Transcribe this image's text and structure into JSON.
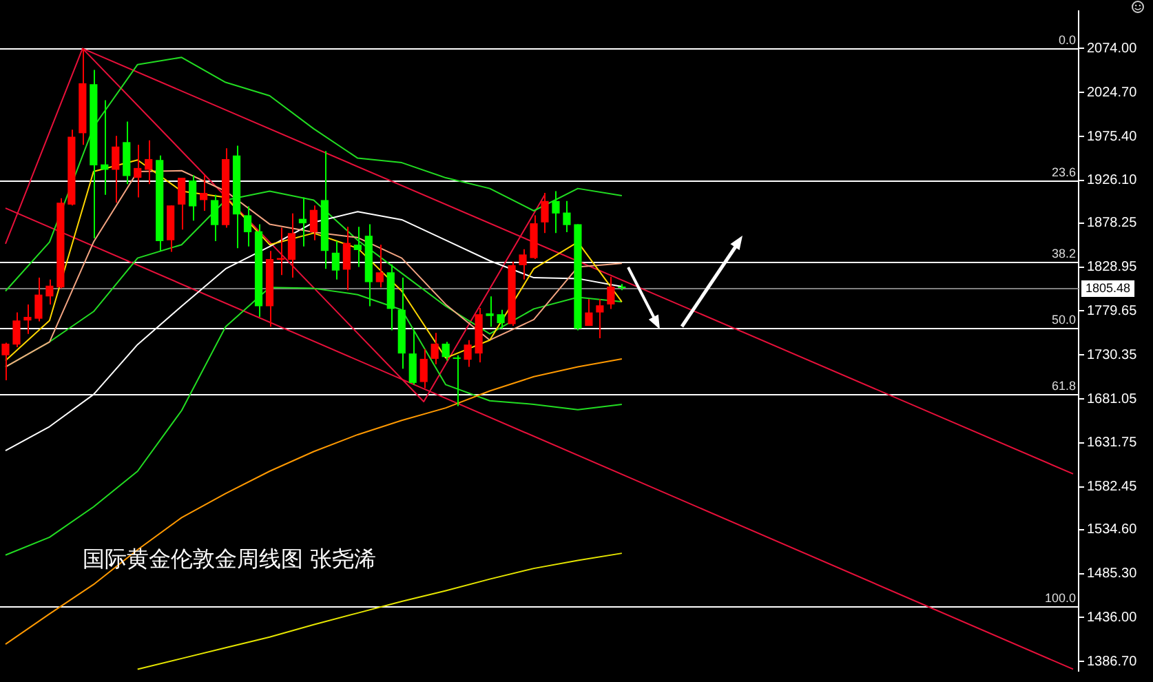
{
  "chart_data": {
    "type": "candlestick",
    "title": "国际黄金伦敦金周线图 张尧浠",
    "categories": [
      null,
      null,
      null,
      null,
      null,
      null,
      null,
      null,
      null,
      null,
      null,
      null,
      null,
      null,
      null,
      null,
      null,
      null,
      null,
      null,
      null,
      null,
      null,
      null,
      null,
      null,
      null,
      null,
      null,
      null,
      null,
      null,
      null,
      null,
      null,
      null,
      null,
      null,
      null,
      null,
      null,
      null,
      null,
      null,
      null,
      null,
      null,
      null,
      null,
      null,
      null,
      null,
      null,
      null,
      null,
      null,
      null,
      null,
      null,
      null,
      null,
      null,
      null,
      null,
      null,
      null,
      null,
      null,
      null,
      null,
      null,
      null,
      null,
      null,
      null,
      null,
      null,
      null,
      null,
      null,
      null,
      null,
      null,
      null,
      null,
      null,
      null,
      null,
      null,
      null,
      null,
      null,
      null,
      null,
      null,
      null,
      null,
      null
    ],
    "ohlc": [
      [
        1730,
        1744,
        1702,
        1743
      ],
      [
        1742,
        1778,
        1739,
        1769
      ],
      [
        1769,
        1787,
        1754,
        1773
      ],
      [
        1771,
        1817,
        1768,
        1798
      ],
      [
        1796,
        1815,
        1787,
        1808
      ],
      [
        1806,
        1906,
        1805,
        1901
      ],
      [
        1899,
        1983,
        1898,
        1975
      ],
      [
        1979,
        2074,
        1966,
        2035
      ],
      [
        2034,
        2050,
        1861,
        1943
      ],
      [
        1944,
        2016,
        1910,
        1938
      ],
      [
        1938,
        1976,
        1901,
        1964
      ],
      [
        1969,
        1992,
        1922,
        1931
      ],
      [
        1929,
        1966,
        1907,
        1940
      ],
      [
        1938,
        1971,
        1922,
        1950
      ],
      [
        1949,
        1954,
        1847,
        1858
      ],
      [
        1859,
        1898,
        1846,
        1898
      ],
      [
        1899,
        1929,
        1871,
        1929
      ],
      [
        1926,
        1932,
        1881,
        1897
      ],
      [
        1904,
        1932,
        1892,
        1912
      ],
      [
        1904,
        1910,
        1858,
        1876
      ],
      [
        1876,
        1962,
        1873,
        1950
      ],
      [
        1954,
        1965,
        1850,
        1888
      ],
      [
        1887,
        1897,
        1852,
        1868
      ],
      [
        1869,
        1877,
        1773,
        1785
      ],
      [
        1785,
        1847,
        1762,
        1838
      ],
      [
        1837,
        1873,
        1820,
        1839
      ],
      [
        1837,
        1889,
        1817,
        1867
      ],
      [
        1883,
        1907,
        1852,
        1878
      ],
      [
        1868,
        1898,
        1859,
        1893
      ],
      [
        1904,
        1959,
        1827,
        1847
      ],
      [
        1845,
        1858,
        1815,
        1825
      ],
      [
        1826,
        1874,
        1803,
        1856
      ],
      [
        1854,
        1874,
        1829,
        1848
      ],
      [
        1864,
        1877,
        1785,
        1812
      ],
      [
        1812,
        1854,
        1806,
        1823
      ],
      [
        1823,
        1832,
        1758,
        1782
      ],
      [
        1781,
        1817,
        1715,
        1732
      ],
      [
        1732,
        1758,
        1697,
        1699
      ],
      [
        1700,
        1737,
        1693,
        1726
      ],
      [
        1726,
        1755,
        1720,
        1743
      ],
      [
        1743,
        1745,
        1724,
        1728
      ],
      [
        1727,
        1730,
        1673,
        1726
      ],
      [
        1725,
        1747,
        1717,
        1742
      ],
      [
        1732,
        1783,
        1722,
        1776
      ],
      [
        1777,
        1796,
        1762,
        1774
      ],
      [
        1776,
        1781,
        1760,
        1766
      ],
      [
        1765,
        1835,
        1763,
        1831
      ],
      [
        1831,
        1849,
        1815,
        1843
      ],
      [
        1839,
        1887,
        1838,
        1878
      ],
      [
        1879,
        1912,
        1867,
        1903
      ],
      [
        1903,
        1914,
        1867,
        1889
      ],
      [
        1890,
        1903,
        1868,
        1876
      ],
      [
        1877,
        1877,
        1758,
        1760
      ],
      [
        1763,
        1793,
        1763,
        1778
      ],
      [
        1778,
        1793,
        1749,
        1786
      ],
      [
        1787,
        1818,
        1782,
        1807
      ],
      [
        1807,
        1810,
        1803,
        1805.48
      ],
      null,
      null,
      null,
      null,
      null,
      null,
      null,
      null,
      null,
      null,
      null,
      null,
      null,
      null,
      null,
      null,
      null,
      null,
      null,
      null,
      null,
      null,
      null,
      null,
      null,
      null,
      null,
      null,
      null,
      null,
      null,
      null,
      null,
      null,
      null,
      null,
      null,
      null,
      null,
      null,
      null
    ],
    "colors": [
      "#ff0000",
      "#ff0000",
      "#ff0000",
      "#ff0000",
      "#ff0000",
      "#ff0000",
      "#ff0000",
      "#ff0000",
      "#00ff00",
      "#00ff00",
      "#ff0000",
      "#00ff00",
      "#ff0000",
      "#ff0000",
      "#00ff00",
      "#ff0000",
      "#ff0000",
      "#00ff00",
      "#ff0000",
      "#00ff00",
      "#ff0000",
      "#00ff00",
      "#00ff00",
      "#00ff00",
      "#ff0000",
      "#ff0000",
      "#ff0000",
      "#00ff00",
      "#ff0000",
      "#00ff00",
      "#00ff00",
      "#ff0000",
      "#00ff00",
      "#00ff00",
      "#ff0000",
      "#00ff00",
      "#00ff00",
      "#00ff00",
      "#ff0000",
      "#ff0000",
      "#00ff00",
      "#00ff00",
      "#ff0000",
      "#ff0000",
      "#00ff00",
      "#00ff00",
      "#ff0000",
      "#ff0000",
      "#ff0000",
      "#ff0000",
      "#00ff00",
      "#00ff00",
      "#00ff00",
      "#ff0000",
      "#ff0000",
      "#ff0000",
      "#00ff00",
      null,
      null,
      null,
      null,
      null,
      null,
      null,
      null,
      null,
      null,
      null,
      null,
      null,
      null,
      null,
      null,
      null,
      null,
      null,
      null,
      null,
      null,
      null,
      null,
      null,
      null,
      null,
      null,
      null,
      null,
      null,
      null,
      null,
      null,
      null,
      null,
      null,
      null,
      null,
      null,
      null
    ],
    "series": [
      {
        "type": "line",
        "color": "#ffd700",
        "values": [
          1724,
          null,
          null,
          null,
          1769,
          null,
          null,
          null,
          1936,
          null,
          null,
          null,
          1949,
          null,
          null,
          null,
          1914,
          null,
          null,
          null,
          1907,
          null,
          null,
          null,
          1854,
          null,
          null,
          null,
          1867,
          null,
          null,
          null,
          1850,
          null,
          null,
          null,
          1802,
          null,
          null,
          null,
          1727,
          null,
          null,
          null,
          1747,
          null,
          null,
          null,
          1827,
          null,
          null,
          null,
          1857,
          null,
          null,
          null,
          1790,
          null,
          null,
          null,
          null,
          null,
          null,
          null,
          null,
          null,
          null,
          null,
          null,
          null,
          null,
          null,
          null,
          null,
          null,
          null,
          null,
          null,
          null,
          null,
          null,
          null,
          null,
          null,
          null,
          null,
          null,
          null,
          null,
          null,
          null,
          null,
          null,
          null,
          null,
          null,
          null,
          null
        ]
      },
      {
        "type": "line",
        "color": "#f4a582",
        "values": [
          1717,
          null,
          null,
          null,
          1745,
          null,
          null,
          null,
          1857,
          null,
          null,
          null,
          1936,
          null,
          null,
          null,
          1937,
          null,
          null,
          null,
          1914,
          null,
          null,
          null,
          1877,
          null,
          null,
          null,
          1868,
          null,
          null,
          null,
          1862,
          null,
          null,
          null,
          1839,
          null,
          null,
          null,
          1787,
          null,
          null,
          null,
          1747,
          null,
          null,
          null,
          1770,
          null,
          null,
          null,
          1829,
          null,
          null,
          null,
          1833,
          null,
          null,
          null,
          null,
          null,
          null,
          null,
          null,
          null,
          null,
          null,
          null,
          null,
          null,
          null,
          null,
          null,
          null,
          null,
          null,
          null,
          null,
          null,
          null,
          null,
          null,
          null,
          null,
          null,
          null,
          null,
          null,
          null,
          null,
          null,
          null,
          null,
          null,
          null,
          null,
          null
        ]
      },
      {
        "type": "line",
        "color": "#ffffff",
        "values": [
          1623,
          null,
          null,
          null,
          1650,
          null,
          null,
          null,
          1686,
          null,
          null,
          null,
          1742,
          null,
          null,
          null,
          1785,
          null,
          null,
          null,
          1827,
          null,
          null,
          null,
          1852,
          null,
          null,
          null,
          1879,
          null,
          null,
          null,
          1891,
          null,
          null,
          null,
          1882,
          null,
          null,
          null,
          1859,
          null,
          null,
          null,
          1836,
          null,
          null,
          null,
          1817,
          null,
          null,
          null,
          1816,
          null,
          null,
          null,
          1807,
          null,
          null,
          null,
          null,
          null,
          null,
          null,
          null,
          null,
          null,
          null,
          null,
          null,
          null,
          null,
          null,
          null,
          null,
          null,
          null,
          null,
          null,
          null,
          null,
          null,
          null,
          null,
          null,
          null,
          null,
          null,
          null,
          null,
          null,
          null,
          null,
          null,
          null,
          null,
          null,
          null
        ]
      },
      {
        "type": "line",
        "color": "#ff9900",
        "values": [
          1406,
          null,
          null,
          null,
          1440,
          null,
          null,
          null,
          1473,
          null,
          null,
          null,
          1512,
          null,
          null,
          null,
          1548,
          null,
          null,
          null,
          1575,
          null,
          null,
          null,
          1600,
          null,
          null,
          null,
          1622,
          null,
          null,
          null,
          1641,
          null,
          null,
          null,
          1657,
          null,
          null,
          null,
          1671,
          null,
          null,
          null,
          1690,
          null,
          null,
          null,
          1706,
          null,
          null,
          null,
          1717,
          null,
          null,
          null,
          1726,
          null,
          null,
          null,
          null,
          null,
          null,
          null,
          null,
          null,
          null,
          null,
          null,
          null,
          null,
          null,
          null,
          null,
          null,
          null,
          null,
          null,
          null,
          null,
          null,
          null,
          null,
          null,
          null,
          null,
          null,
          null,
          null,
          null,
          null,
          null,
          null,
          null,
          null,
          null,
          null,
          null
        ]
      },
      {
        "type": "line",
        "color": "#e6e600",
        "values": [
          null,
          null,
          null,
          null,
          null,
          null,
          null,
          null,
          null,
          null,
          null,
          null,
          1378,
          null,
          null,
          null,
          1390,
          null,
          null,
          null,
          1402,
          null,
          null,
          null,
          1414,
          null,
          null,
          null,
          1428,
          null,
          null,
          null,
          1441,
          null,
          null,
          null,
          1454,
          null,
          null,
          null,
          1466,
          null,
          null,
          null,
          1479,
          null,
          null,
          null,
          1491,
          null,
          null,
          null,
          1500,
          null,
          null,
          null,
          1508,
          null,
          null,
          null,
          null,
          null,
          null,
          null,
          null,
          null,
          null,
          null,
          null,
          null,
          null,
          null,
          null,
          null,
          null,
          null,
          null,
          null,
          null,
          null,
          null,
          null,
          null,
          null,
          null,
          null,
          null,
          null,
          null,
          null,
          null,
          null,
          null,
          null,
          null,
          null,
          null,
          null
        ]
      },
      {
        "type": "line",
        "color": "#22dd22",
        "values": [
          1802,
          null,
          null,
          null,
          1857,
          null,
          null,
          null,
          1986,
          null,
          null,
          null,
          2056,
          null,
          null,
          null,
          2064,
          null,
          null,
          null,
          2036,
          null,
          null,
          null,
          2021,
          null,
          null,
          null,
          1984,
          null,
          null,
          null,
          1951,
          null,
          null,
          null,
          1946,
          null,
          null,
          null,
          1929,
          null,
          null,
          null,
          1917,
          null,
          null,
          null,
          1892,
          null,
          null,
          null,
          1917,
          null,
          null,
          null,
          1909,
          null,
          null,
          null,
          null,
          null,
          null,
          null,
          null,
          null,
          null,
          null,
          null,
          null,
          null,
          null,
          null,
          null,
          null,
          null,
          null,
          null,
          null,
          null,
          null,
          null,
          null,
          null,
          null,
          null,
          null,
          null,
          null,
          null,
          null,
          null,
          null,
          null,
          null,
          null,
          null,
          null
        ]
      },
      {
        "type": "line",
        "color": "#22dd22",
        "values": [
          1717,
          null,
          null,
          null,
          1745,
          null,
          null,
          null,
          1779,
          null,
          null,
          null,
          1839,
          null,
          null,
          null,
          1854,
          null,
          null,
          null,
          1904,
          null,
          null,
          null,
          1914,
          null,
          null,
          null,
          1904,
          null,
          null,
          null,
          1859,
          null,
          null,
          null,
          1822,
          null,
          null,
          null,
          1785,
          null,
          null,
          null,
          1754,
          null,
          null,
          null,
          1782,
          null,
          null,
          null,
          1795,
          null,
          null,
          null,
          1790,
          null,
          null,
          null,
          null,
          null,
          null,
          null,
          null,
          null,
          null,
          null,
          null,
          null,
          null,
          null,
          null,
          null,
          null,
          null,
          null,
          null,
          null,
          null,
          null,
          null,
          null,
          null,
          null,
          null,
          null,
          null,
          null,
          null,
          null,
          null,
          null,
          null,
          null,
          null,
          null,
          null
        ]
      },
      {
        "type": "line",
        "color": "#22dd22",
        "values": [
          1506,
          null,
          null,
          null,
          1526,
          null,
          null,
          null,
          1560,
          null,
          null,
          null,
          1600,
          null,
          null,
          null,
          1668,
          null,
          null,
          null,
          1762,
          null,
          null,
          null,
          1806,
          null,
          null,
          null,
          1805,
          null,
          null,
          null,
          1798,
          null,
          null,
          null,
          1781,
          null,
          null,
          null,
          1697,
          null,
          null,
          null,
          1679,
          null,
          null,
          null,
          1675,
          null,
          null,
          null,
          1669,
          null,
          null,
          null,
          1675,
          null,
          null,
          null,
          null,
          null,
          null,
          null,
          null,
          null,
          null,
          null,
          null,
          null,
          null,
          null,
          null,
          null,
          null,
          null,
          null,
          null,
          null,
          null,
          null,
          null,
          null,
          null,
          null,
          null,
          null,
          null,
          null,
          null,
          null,
          null,
          null,
          null,
          null,
          null,
          null,
          null
        ]
      },
      {
        "type": "line",
        "color": "#e8103a",
        "values": [
          1855,
          null,
          null,
          null,
          null,
          null,
          null,
          2074,
          null,
          null,
          null,
          null,
          null,
          null,
          null,
          null,
          null,
          null,
          null,
          null,
          null,
          null,
          null,
          null,
          null,
          null,
          null,
          null,
          null,
          null,
          null,
          null,
          null,
          null,
          null,
          null,
          null,
          null,
          1678,
          null,
          null,
          null,
          null,
          null,
          null,
          null,
          null,
          null,
          null,
          1910,
          null,
          null,
          null,
          null,
          null,
          null,
          null,
          null,
          null,
          null,
          null,
          null,
          null,
          null,
          null,
          null,
          null,
          null,
          null,
          null,
          null,
          null,
          null,
          null,
          null,
          null,
          null,
          null,
          null,
          null,
          null,
          null,
          null,
          null,
          null,
          null,
          null,
          null,
          null,
          null,
          null,
          null,
          null,
          null,
          null,
          null,
          null,
          null
        ]
      },
      {
        "type": "line",
        "color": "#e8103a",
        "values": [
          null,
          null,
          null,
          null,
          null,
          null,
          null,
          2074,
          null,
          null,
          null,
          null,
          null,
          null,
          null,
          null,
          null,
          null,
          null,
          null,
          null,
          null,
          null,
          null,
          null,
          null,
          null,
          null,
          null,
          null,
          null,
          null,
          null,
          null,
          null,
          null,
          null,
          null,
          null,
          null,
          null,
          null,
          null,
          null,
          null,
          null,
          null,
          null,
          null,
          null,
          null,
          null,
          null,
          null,
          null,
          null,
          null,
          null,
          null,
          null,
          null,
          null,
          null,
          null,
          null,
          null,
          null,
          null,
          null,
          null,
          null,
          null,
          null,
          null,
          null,
          null,
          null,
          null,
          null,
          null,
          null,
          null,
          null,
          null,
          null,
          null,
          null,
          null,
          null,
          null,
          null,
          null,
          null,
          null,
          null,
          null,
          null,
          1597
        ]
      },
      {
        "type": "line",
        "color": "#e8103a",
        "values": [
          1895,
          null,
          null,
          null,
          null,
          null,
          null,
          null,
          null,
          null,
          null,
          null,
          null,
          null,
          null,
          null,
          null,
          null,
          null,
          null,
          null,
          null,
          null,
          null,
          null,
          null,
          null,
          null,
          null,
          null,
          null,
          null,
          null,
          null,
          null,
          null,
          null,
          null,
          null,
          null,
          null,
          null,
          null,
          null,
          null,
          null,
          null,
          null,
          null,
          null,
          null,
          null,
          null,
          null,
          null,
          null,
          null,
          null,
          null,
          null,
          null,
          null,
          null,
          null,
          null,
          null,
          null,
          null,
          null,
          null,
          null,
          null,
          null,
          null,
          null,
          null,
          null,
          null,
          null,
          null,
          null,
          null,
          null,
          null,
          null,
          null,
          null,
          null,
          null,
          null,
          null,
          null,
          null,
          null,
          null,
          null,
          null,
          1378
        ]
      }
    ],
    "ylim": [
      1376,
      2116
    ],
    "yticks": [
      {
        "value": 2074,
        "label": "2074.00"
      },
      {
        "value": 2024.7,
        "label": "2024.70"
      },
      {
        "value": 1975.4,
        "label": "1975.40"
      },
      {
        "value": 1926.1,
        "label": "1926.10"
      },
      {
        "value": 1878.25,
        "label": "1878.25"
      },
      {
        "value": 1828.95,
        "label": "1828.95"
      },
      {
        "value": 1779.65,
        "label": "1779.65"
      },
      {
        "value": 1730.35,
        "label": "1730.35"
      },
      {
        "value": 1681.05,
        "label": "1681.05"
      },
      {
        "value": 1631.75,
        "label": "1631.75"
      },
      {
        "value": 1582.45,
        "label": "1582.45"
      },
      {
        "value": 1534.6,
        "label": "1534.60"
      },
      {
        "value": 1485.3,
        "label": "1485.30"
      },
      {
        "value": 1436,
        "label": "1436.00"
      },
      {
        "value": 1386.7,
        "label": "1386.70"
      }
    ],
    "ref_lines": [
      {
        "axis": "y",
        "value": 2074,
        "color": "#ffffff"
      },
      {
        "axis": "y",
        "value": 1926,
        "color": "#ffffff"
      },
      {
        "axis": "y",
        "value": 1835,
        "color": "#ffffff"
      },
      {
        "axis": "y",
        "value": 1761,
        "color": "#ffffff"
      },
      {
        "axis": "y",
        "value": 1687,
        "color": "#ffffff"
      },
      {
        "axis": "y",
        "value": 1448,
        "color": "#ffffff"
      },
      {
        "axis": "y",
        "value": 1805.48,
        "label": "1805.48",
        "color": "#808080"
      }
    ],
    "annotations": [
      {
        "text": "0.0",
        "y": 2074
      },
      {
        "text": "23.6",
        "y": 1926
      },
      {
        "text": "38.2",
        "y": 1835
      },
      {
        "text": "50.0",
        "y": 1761
      },
      {
        "text": "61.8",
        "y": 1687
      },
      {
        "text": "100.0",
        "y": 1448
      }
    ]
  }
}
